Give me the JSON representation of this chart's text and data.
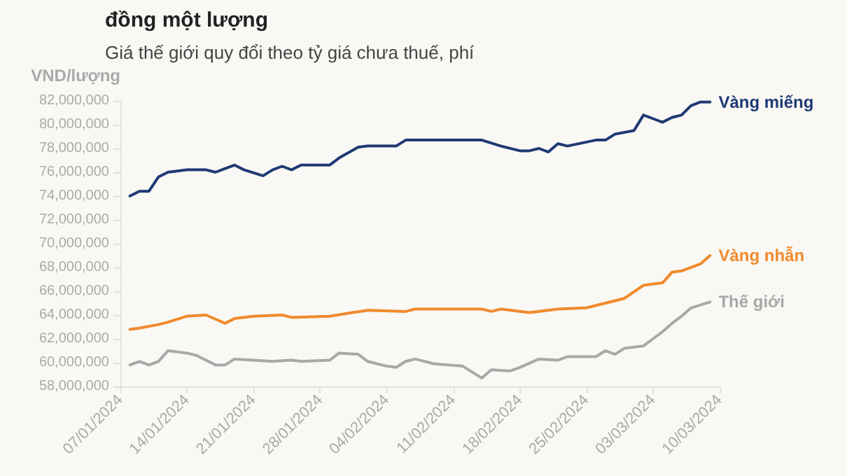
{
  "chart_data": {
    "type": "line",
    "title": "đồng một lượng",
    "subtitle": "Giá thế giới quy đổi theo tỷ giá chưa thuế, phí",
    "ylabel": "VND/lượng",
    "xlim": [
      "2024-01-07",
      "2024-03-10"
    ],
    "xticks": [
      {
        "value": "2024-01-07",
        "label": "07/01/2024"
      },
      {
        "value": "2024-01-14",
        "label": "14/01/2024"
      },
      {
        "value": "2024-01-21",
        "label": "21/01/2024"
      },
      {
        "value": "2024-01-28",
        "label": "28/01/2024"
      },
      {
        "value": "2024-02-04",
        "label": "04/02/2024"
      },
      {
        "value": "2024-02-11",
        "label": "11/02/2024"
      },
      {
        "value": "2024-02-18",
        "label": "18/02/2024"
      },
      {
        "value": "2024-02-25",
        "label": "25/02/2024"
      },
      {
        "value": "2024-03-03",
        "label": "03/03/2024"
      },
      {
        "value": "2024-03-10",
        "label": "10/03/2024"
      }
    ],
    "ylim": [
      58000000,
      82000000
    ],
    "yticks": [
      {
        "value": 58000000,
        "label": "58,000,000"
      },
      {
        "value": 60000000,
        "label": "60,000,000"
      },
      {
        "value": 62000000,
        "label": "62,000,000"
      },
      {
        "value": 64000000,
        "label": "64,000,000"
      },
      {
        "value": 66000000,
        "label": "66,000,000"
      },
      {
        "value": 68000000,
        "label": "68,000,000"
      },
      {
        "value": 70000000,
        "label": "70,000,000"
      },
      {
        "value": 72000000,
        "label": "72,000,000"
      },
      {
        "value": 74000000,
        "label": "74,000,000"
      },
      {
        "value": 76000000,
        "label": "76,000,000"
      },
      {
        "value": 78000000,
        "label": "78,000,000"
      },
      {
        "value": 80000000,
        "label": "80,000,000"
      },
      {
        "value": 82000000,
        "label": "82,000,000"
      }
    ],
    "grid": false,
    "legend": false,
    "marker": "none",
    "line_style": "solid",
    "series": [
      {
        "name": "Vàng miếng",
        "color": "#1f3a73",
        "x": [
          "2024-01-08",
          "2024-01-09",
          "2024-01-10",
          "2024-01-11",
          "2024-01-12",
          "2024-01-14",
          "2024-01-16",
          "2024-01-17",
          "2024-01-18",
          "2024-01-19",
          "2024-01-20",
          "2024-01-22",
          "2024-01-23",
          "2024-01-24",
          "2024-01-25",
          "2024-01-26",
          "2024-01-29",
          "2024-01-30",
          "2024-02-01",
          "2024-02-02",
          "2024-02-05",
          "2024-02-06",
          "2024-02-14",
          "2024-02-16",
          "2024-02-18",
          "2024-02-19",
          "2024-02-20",
          "2024-02-21",
          "2024-02-22",
          "2024-02-23",
          "2024-02-26",
          "2024-02-27",
          "2024-02-28",
          "2024-03-01",
          "2024-03-02",
          "2024-03-03",
          "2024-03-04",
          "2024-03-05",
          "2024-03-06",
          "2024-03-07",
          "2024-03-08",
          "2024-03-09"
        ],
        "values": [
          74000000,
          74400000,
          74400000,
          75600000,
          76000000,
          76200000,
          76200000,
          76000000,
          76300000,
          76600000,
          76200000,
          75700000,
          76200000,
          76500000,
          76200000,
          76600000,
          76600000,
          77200000,
          78100000,
          78200000,
          78200000,
          78700000,
          78700000,
          78200000,
          77800000,
          77800000,
          78000000,
          77700000,
          78400000,
          78200000,
          78700000,
          78700000,
          79200000,
          79500000,
          80800000,
          80500000,
          80200000,
          80600000,
          80800000,
          81600000,
          81900000,
          81900000
        ]
      },
      {
        "name": "Vàng nhẫn",
        "color": "#f08a2c",
        "x": [
          "2024-01-08",
          "2024-01-09",
          "2024-01-11",
          "2024-01-12",
          "2024-01-14",
          "2024-01-16",
          "2024-01-18",
          "2024-01-19",
          "2024-01-21",
          "2024-01-24",
          "2024-01-25",
          "2024-01-29",
          "2024-02-02",
          "2024-02-06",
          "2024-02-07",
          "2024-02-14",
          "2024-02-15",
          "2024-02-16",
          "2024-02-19",
          "2024-02-22",
          "2024-02-25",
          "2024-02-27",
          "2024-02-29",
          "2024-03-02",
          "2024-03-04",
          "2024-03-05",
          "2024-03-06",
          "2024-03-08",
          "2024-03-09"
        ],
        "values": [
          62800000,
          62900000,
          63200000,
          63400000,
          63900000,
          64000000,
          63300000,
          63700000,
          63900000,
          64000000,
          63800000,
          63900000,
          64400000,
          64300000,
          64500000,
          64500000,
          64300000,
          64500000,
          64200000,
          64500000,
          64600000,
          65000000,
          65400000,
          66500000,
          66700000,
          67600000,
          67700000,
          68300000,
          69000000
        ]
      },
      {
        "name": "Thế giới",
        "color": "#a8a8a8",
        "x": [
          "2024-01-08",
          "2024-01-09",
          "2024-01-10",
          "2024-01-11",
          "2024-01-12",
          "2024-01-14",
          "2024-01-15",
          "2024-01-17",
          "2024-01-18",
          "2024-01-19",
          "2024-01-21",
          "2024-01-23",
          "2024-01-25",
          "2024-01-26",
          "2024-01-29",
          "2024-01-30",
          "2024-02-01",
          "2024-02-02",
          "2024-02-04",
          "2024-02-05",
          "2024-02-06",
          "2024-02-07",
          "2024-02-09",
          "2024-02-12",
          "2024-02-14",
          "2024-02-15",
          "2024-02-17",
          "2024-02-18",
          "2024-02-20",
          "2024-02-22",
          "2024-02-23",
          "2024-02-26",
          "2024-02-27",
          "2024-02-28",
          "2024-02-29",
          "2024-03-02",
          "2024-03-03",
          "2024-03-04",
          "2024-03-05",
          "2024-03-06",
          "2024-03-07",
          "2024-03-09"
        ],
        "values": [
          59800000,
          60100000,
          59800000,
          60100000,
          61000000,
          60800000,
          60600000,
          59800000,
          59800000,
          60300000,
          60200000,
          60100000,
          60200000,
          60100000,
          60200000,
          60800000,
          60700000,
          60100000,
          59700000,
          59600000,
          60100000,
          60300000,
          59900000,
          59700000,
          58700000,
          59400000,
          59300000,
          59600000,
          60300000,
          60200000,
          60500000,
          60500000,
          61000000,
          60700000,
          61200000,
          61400000,
          62000000,
          62600000,
          63300000,
          63900000,
          64600000,
          65100000
        ]
      }
    ]
  }
}
